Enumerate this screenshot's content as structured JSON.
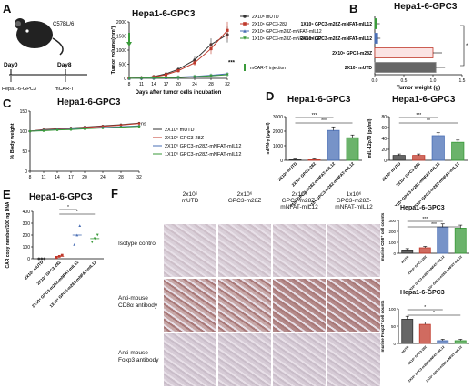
{
  "panelA": {
    "label": "A",
    "strain": "C57BL/6",
    "day0": "Day0",
    "day8": "Day8",
    "tumor_label": "Hepa1-6-GPC3",
    "treatment_label": "mCAR-T",
    "injection_legend": "mCAR-T injection",
    "chart_data": {
      "type": "line",
      "title": "Hepa1-6-GPC3",
      "xlabel": "Days after tumor cells incubation",
      "ylabel": "Tumor volume(mm³)",
      "x": [
        8,
        11,
        14,
        17,
        20,
        24,
        28,
        32
      ],
      "ylim": [
        0,
        2000
      ],
      "yticks": [
        0,
        500,
        1000,
        1500,
        2000
      ],
      "significance": "***",
      "series": [
        {
          "name": "2X10⁶ mUTD",
          "color": "#333333",
          "marker": "circle",
          "values": [
            5,
            20,
            60,
            160,
            320,
            650,
            1200,
            1550
          ]
        },
        {
          "name": "2X10⁶ GPC3-28Z",
          "color": "#c0392b",
          "marker": "square",
          "values": [
            5,
            15,
            50,
            130,
            270,
            550,
            1050,
            1700
          ]
        },
        {
          "name": "2X10⁶ GPC3-m28Z-mNFAT-mIL12",
          "color": "#4a6fb5",
          "marker": "triangle",
          "values": [
            3,
            8,
            15,
            25,
            45,
            70,
            110,
            160
          ]
        },
        {
          "name": "1X10⁶ GPC3-m28Z-mNFAT-mIL12",
          "color": "#3a9a3a",
          "marker": "triangle-down",
          "values": [
            3,
            8,
            12,
            20,
            30,
            55,
            90,
            130
          ]
        }
      ]
    }
  },
  "panelB": {
    "label": "B",
    "chart_data": {
      "type": "bar",
      "orientation": "horizontal",
      "title": "Hepa1-6-GPC3",
      "xlabel": "Tumor weight (g)",
      "categories": [
        "1X10⁶ GPC3-m28Z-mNFAT-mIL12",
        "2X10⁶ GPC3-m28Z-mNFAT-mIL12",
        "2X10⁶ GPC3-m28Z",
        "2X10⁶ mUTD"
      ],
      "values": [
        0.04,
        0.05,
        1.0,
        1.05
      ],
      "colors": [
        "#3a9a3a",
        "#4a6fb5",
        "#c0392b",
        "#888888"
      ],
      "xlim": [
        0,
        1.5
      ],
      "xticks": [
        "0.0",
        "0.5",
        "1.0",
        "1.5"
      ],
      "significance": "*"
    }
  },
  "panelC": {
    "label": "C",
    "chart_data": {
      "type": "line",
      "title": "Hepa1-6-GPC3",
      "xlabel": "",
      "ylabel": "% Body weight",
      "x": [
        8,
        11,
        14,
        17,
        20,
        24,
        28,
        32
      ],
      "ylim": [
        0,
        150
      ],
      "yticks": [
        0,
        50,
        100,
        150
      ],
      "significance": "ns",
      "series": [
        {
          "name": "2X10⁶ mUTD",
          "color": "#333333",
          "values": [
            100,
            104,
            106,
            108,
            110,
            113,
            116,
            120
          ]
        },
        {
          "name": "2X10⁶ GPC3-28Z",
          "color": "#c0392b",
          "values": [
            100,
            103,
            105,
            107,
            109,
            112,
            115,
            119
          ]
        },
        {
          "name": "2X10⁶ GPC3-m28Z-mNFAT-mIL12",
          "color": "#4a6fb5",
          "values": [
            100,
            102,
            104,
            105,
            107,
            109,
            111,
            113
          ]
        },
        {
          "name": "1X10⁶ GPC3-m28Z-mNFAT-mIL12",
          "color": "#3a9a3a",
          "values": [
            100,
            101,
            103,
            104,
            106,
            108,
            110,
            112
          ]
        }
      ]
    }
  },
  "panelD": {
    "label": "D",
    "charts": [
      {
        "type": "bar",
        "title": "Hepa1-6-GPC3",
        "ylabel": "mIFN-γ (pg/ml)",
        "categories": [
          "2X10⁶ mUTD",
          "2X10⁶ GPC3-28Z",
          "2X10⁶ GPC3-m28Z-mNFAT-mIL12",
          "1X10⁶ GPC3-m28Z-mNFAT-mIL12"
        ],
        "values": [
          50,
          60,
          2050,
          1550
        ],
        "colors": [
          "#333333",
          "#c0392b",
          "#4a6fb5",
          "#3a9a3a"
        ],
        "ylim": [
          0,
          3000
        ],
        "yticks": [
          0,
          1000,
          2000,
          3000
        ],
        "significance": [
          "***",
          "***"
        ]
      },
      {
        "type": "bar",
        "title": "Hepa1-6-GPC3",
        "ylabel": "mIL-12p70 (pg/ml)",
        "categories": [
          "2X10⁶ mUTD",
          "2X10⁶ GPC3-28Z",
          "2X10⁶ GPC3-m28Z-mNFAT-mIL12",
          "1X10⁶ GPC3-m28Z-mNFAT-mIL12"
        ],
        "values": [
          9,
          9,
          45,
          33
        ],
        "colors": [
          "#333333",
          "#c0392b",
          "#4a6fb5",
          "#3a9a3a"
        ],
        "ylim": [
          0,
          80
        ],
        "yticks": [
          0,
          20,
          40,
          60,
          80
        ],
        "significance": [
          "***",
          "**"
        ]
      }
    ]
  },
  "panelE": {
    "label": "E",
    "chart_data": {
      "type": "scatter",
      "title": "Hepa1-6-GPC3",
      "ylabel": "CAR copy number/100 ng DNA",
      "categories": [
        "2X10⁶ mUTD",
        "2X10⁶ GPC3-28Z",
        "2X10⁶ GPC3-m28Z-mNFAT-mIL12",
        "1X10⁶ GPC3-m28Z-mNFAT-mIL12"
      ],
      "values": [
        [
          0,
          0,
          0
        ],
        [
          10,
          20,
          30
        ],
        [
          120,
          200,
          280
        ],
        [
          140,
          170,
          200
        ]
      ],
      "means": [
        0,
        20,
        200,
        170
      ],
      "colors": [
        "#333333",
        "#c0392b",
        "#4a6fb5",
        "#3a9a3a"
      ],
      "ylim": [
        0,
        400
      ],
      "yticks": [
        0,
        100,
        200,
        300,
        400
      ],
      "significance": [
        "*",
        "*"
      ]
    }
  },
  "panelF": {
    "label": "F",
    "columns": [
      "2x10⁶\nmUTD",
      "2x10⁶\nGPC3-m28Z",
      "2x10⁶\nGPC3-m28Z-mNFAT-mIL12",
      "1x10⁶\nGPC3-m28Z-mNFAT-mIL12"
    ],
    "rows": [
      "Isotype control",
      "Anti-mouse\nCD8α antibody",
      "Anti-mouse\nFoxp3 antibody"
    ],
    "charts": [
      {
        "type": "bar",
        "title": "Hepa1-6-GPC3",
        "ylabel": "murine CD8⁺ cell counts",
        "categories": [
          "mUTD",
          "2X10⁶ GPC3-28Z",
          "2X10⁶ GPC3-m28Z-mNFAT-mIL12",
          "1X10⁶ GPC3-m28Z-mNFAT-mIL12"
        ],
        "values": [
          30,
          50,
          240,
          230
        ],
        "colors": [
          "#333333",
          "#c0392b",
          "#4a6fb5",
          "#3a9a3a"
        ],
        "ylim": [
          0,
          300
        ],
        "yticks": [
          0,
          100,
          200,
          300
        ],
        "significance": [
          "***",
          "***"
        ]
      },
      {
        "type": "bar",
        "title": "Hepa1-6-GPC3",
        "ylabel": "murine Foxp3⁺ cell counts",
        "categories": [
          "mUTD",
          "2X10⁶ GPC3-28Z",
          "2X10⁶ GPC3-m28Z-mNFAT-mIL12",
          "1X10⁶ GPC3-m28Z-mNFAT-mIL12"
        ],
        "values": [
          70,
          55,
          8,
          8
        ],
        "colors": [
          "#333333",
          "#c0392b",
          "#4a6fb5",
          "#3a9a3a"
        ],
        "ylim": [
          0,
          100
        ],
        "yticks": [
          0,
          50,
          100
        ],
        "significance": [
          "*",
          "*"
        ]
      }
    ]
  }
}
